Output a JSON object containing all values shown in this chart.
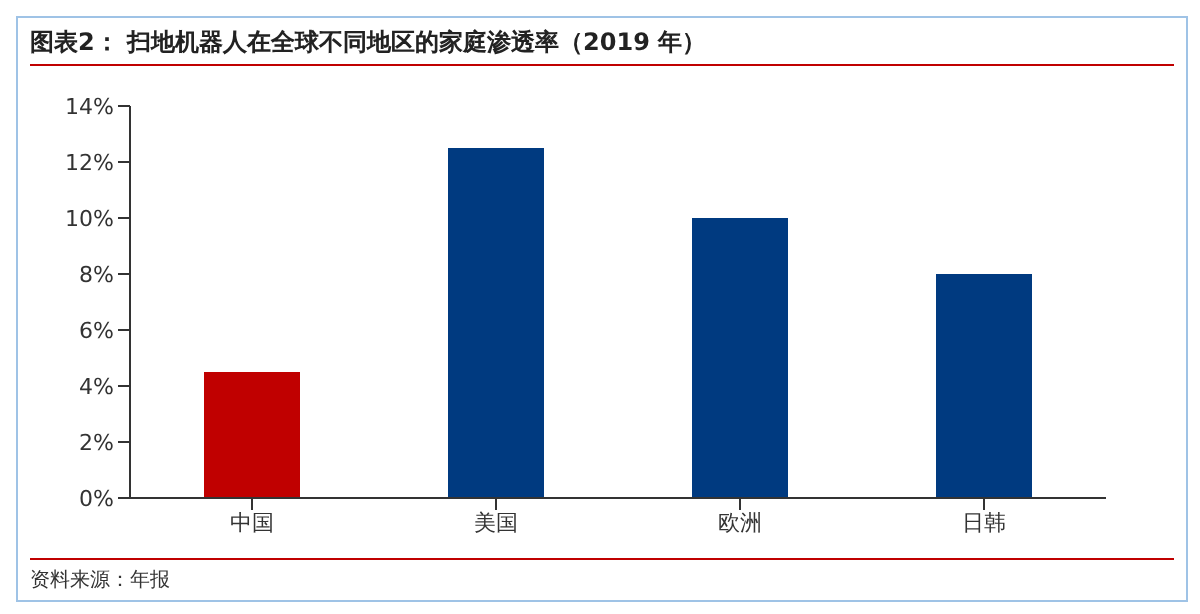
{
  "chart_data": {
    "type": "bar",
    "title": "图表2：  扫地机器人在全球不同地区的家庭渗透率（2019 年）",
    "categories": [
      "中国",
      "美国",
      "欧洲",
      "日韩"
    ],
    "values": [
      4.5,
      12.5,
      10,
      8
    ],
    "colors": [
      "#c00000",
      "#003a80",
      "#003a80",
      "#003a80"
    ],
    "ylim": [
      0,
      14
    ],
    "yticks": [
      {
        "value": 0,
        "label": "0%"
      },
      {
        "value": 2,
        "label": "2%"
      },
      {
        "value": 4,
        "label": "4%"
      },
      {
        "value": 6,
        "label": "6%"
      },
      {
        "value": 8,
        "label": "8%"
      },
      {
        "value": 10,
        "label": "10%"
      },
      {
        "value": 12,
        "label": "12%"
      },
      {
        "value": 14,
        "label": "14%"
      }
    ],
    "grid": false,
    "legend": false,
    "annotations": [
      "资料来源：年报"
    ]
  }
}
